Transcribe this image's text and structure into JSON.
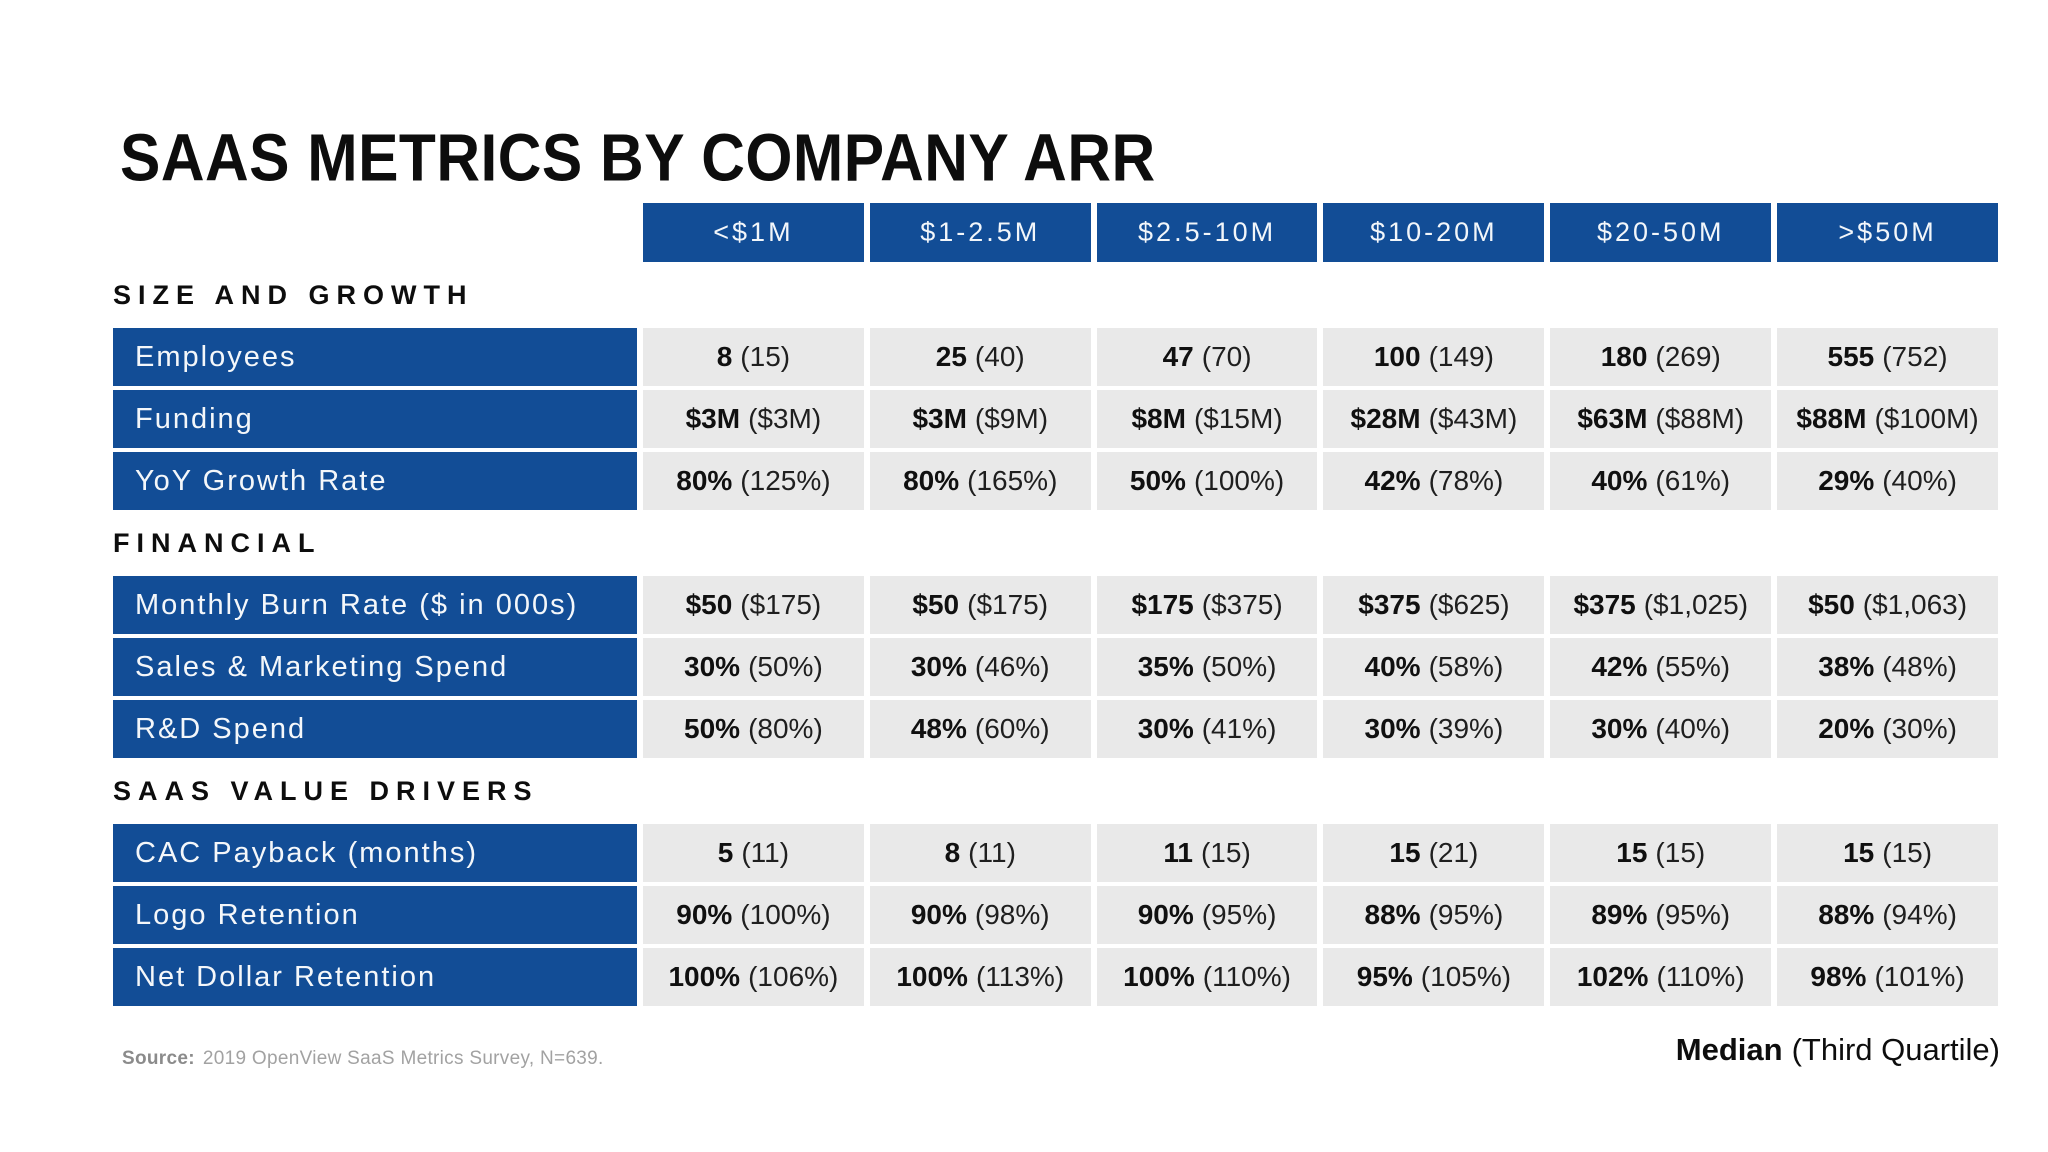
{
  "page": {
    "title": "SAAS METRICS BY COMPANY ARR"
  },
  "colors": {
    "navy": "#124d96",
    "cell_bg": "#e9e9e9",
    "text_dark": "#101010",
    "source_gray": "#a2a2a2"
  },
  "chart_data": {
    "type": "table",
    "title": "SAAS METRICS BY COMPANY ARR",
    "value_format": "Median (Third Quartile)",
    "categories": [
      "<$1M",
      "$1-2.5M",
      "$2.5-10M",
      "$10-20M",
      "$20-50M",
      ">$50M"
    ],
    "sections": [
      {
        "title": "SIZE AND GROWTH",
        "rows": [
          {
            "label": "Employees",
            "median": [
              "8",
              "25",
              "47",
              "100",
              "180",
              "555"
            ],
            "third_quartile": [
              "15",
              "40",
              "70",
              "149",
              "269",
              "752"
            ]
          },
          {
            "label": "Funding",
            "median": [
              "$3M",
              "$3M",
              "$8M",
              "$28M",
              "$63M",
              "$88M"
            ],
            "third_quartile": [
              "$3M",
              "$9M",
              "$15M",
              "$43M",
              "$88M",
              "$100M"
            ]
          },
          {
            "label": "YoY Growth Rate",
            "median": [
              "80%",
              "80%",
              "50%",
              "42%",
              "40%",
              "29%"
            ],
            "third_quartile": [
              "125%",
              "165%",
              "100%",
              "78%",
              "61%",
              "40%"
            ]
          }
        ]
      },
      {
        "title": "FINANCIAL",
        "rows": [
          {
            "label": "Monthly Burn Rate ($ in 000s)",
            "median": [
              "$50",
              "$50",
              "$175",
              "$375",
              "$375",
              "$50"
            ],
            "third_quartile": [
              "$175",
              "$175",
              "$375",
              "$625",
              "$1,025",
              "$1,063"
            ]
          },
          {
            "label": "Sales & Marketing Spend",
            "median": [
              "30%",
              "30%",
              "35%",
              "40%",
              "42%",
              "38%"
            ],
            "third_quartile": [
              "50%",
              "46%",
              "50%",
              "58%",
              "55%",
              "48%"
            ]
          },
          {
            "label": "R&D Spend",
            "median": [
              "50%",
              "48%",
              "30%",
              "30%",
              "30%",
              "20%"
            ],
            "third_quartile": [
              "80%",
              "60%",
              "41%",
              "39%",
              "40%",
              "30%"
            ]
          }
        ]
      },
      {
        "title": "SAAS VALUE DRIVERS",
        "rows": [
          {
            "label": "CAC Payback (months)",
            "median": [
              "5",
              "8",
              "11",
              "15",
              "15",
              "15"
            ],
            "third_quartile": [
              "11",
              "11",
              "15",
              "21",
              "15",
              "15"
            ]
          },
          {
            "label": "Logo Retention",
            "median": [
              "90%",
              "90%",
              "90%",
              "88%",
              "89%",
              "88%"
            ],
            "third_quartile": [
              "100%",
              "98%",
              "95%",
              "95%",
              "95%",
              "94%"
            ]
          },
          {
            "label": "Net Dollar Retention",
            "median": [
              "100%",
              "100%",
              "100%",
              "95%",
              "102%",
              "98%"
            ],
            "third_quartile": [
              "106%",
              "113%",
              "110%",
              "105%",
              "110%",
              "101%"
            ]
          }
        ]
      }
    ]
  },
  "footer": {
    "source_label": "Source:",
    "source_text": "2019 OpenView SaaS Metrics Survey, N=639.",
    "legend_median": "Median",
    "legend_quartile": "(Third Quartile)"
  }
}
